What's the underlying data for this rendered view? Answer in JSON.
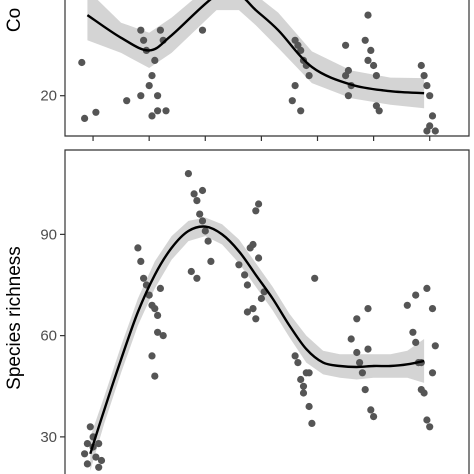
{
  "colors": {
    "point": "#555555",
    "band": "#cccccc",
    "line": "#000000",
    "panel_border": "#333333",
    "tick_text": "#4d4d4d"
  },
  "chart_data": [
    {
      "type": "scatter",
      "panel": "top",
      "ylabel": "Co",
      "ylim": [
        12,
        39
      ],
      "xlim": [
        0.5,
        7.7
      ],
      "y_ticks": [
        20
      ],
      "x_tick_positions": [
        1,
        2,
        3,
        4,
        5,
        6,
        7
      ],
      "x_tick_labels_visible": false,
      "grid": false,
      "smooth": {
        "x": [
          0.9,
          1.5,
          2.0,
          2.4,
          3.2,
          3.6,
          3.9,
          4.3,
          4.9,
          5.6,
          6.3,
          6.9
        ],
        "y": [
          36,
          31.5,
          29,
          32,
          40,
          40,
          37,
          33,
          25.7,
          22.2,
          20.9,
          20.5
        ],
        "band_low": [
          31,
          28.5,
          25.5,
          28.5,
          37,
          37,
          34,
          29.5,
          22.5,
          19.5,
          18.2,
          17.5
        ],
        "band_high": [
          41,
          34.5,
          32.5,
          35.5,
          43,
          43,
          40,
          36.5,
          28.8,
          25,
          23.6,
          23.5
        ]
      },
      "points": {
        "x": [
          0.8,
          0.85,
          1.05,
          1.6,
          1.85,
          1.9,
          1.95,
          2.0,
          2.05,
          2.1,
          2.15,
          2.2,
          1.85,
          2.05,
          2.15,
          2.25,
          2.3,
          2.95,
          4.6,
          4.65,
          4.7,
          4.75,
          4.8,
          4.85,
          4.6,
          4.55,
          4.7,
          5.5,
          5.6,
          5.55,
          5.55,
          5.5,
          5.85,
          5.95,
          5.9,
          6.0,
          6.05,
          6.05,
          6.1,
          6.85,
          6.9,
          6.95,
          7.0,
          7.05,
          7.1,
          6.95,
          7.0,
          5.9
        ],
        "y": [
          26.6,
          15.5,
          16.7,
          19,
          33,
          31,
          29,
          22,
          24,
          27,
          20,
          33,
          20,
          16,
          17,
          31,
          17,
          33,
          31,
          30,
          29,
          27,
          26,
          24,
          22,
          19,
          17,
          24,
          22,
          20,
          25,
          30,
          31,
          29,
          27,
          26,
          24,
          18,
          17,
          26,
          24,
          22,
          20,
          16,
          13,
          13,
          14,
          36
        ]
      }
    },
    {
      "type": "scatter",
      "panel": "bottom",
      "ylabel": "Species richness",
      "ylim": [
        19,
        115
      ],
      "xlim": [
        0.5,
        7.7
      ],
      "y_ticks": [
        30,
        60,
        90
      ],
      "x_tick_positions": [
        1,
        2,
        3,
        4,
        5,
        6,
        7
      ],
      "x_tick_labels_visible": false,
      "grid": false,
      "smooth": {
        "x": [
          0.95,
          1.2,
          1.5,
          1.8,
          2.1,
          2.4,
          2.7,
          3.0,
          3.3,
          3.6,
          3.9,
          4.2,
          4.5,
          4.8,
          5.1,
          5.4,
          5.7,
          6.0,
          6.3,
          6.6,
          6.9
        ],
        "y": [
          25,
          38,
          53,
          67,
          78,
          86,
          91,
          92.3,
          90,
          85,
          78,
          71,
          63,
          56,
          52,
          51,
          50.7,
          51,
          51,
          51.5,
          52.5
        ],
        "band_low": [
          20,
          34,
          49,
          63,
          74,
          82.5,
          88,
          89.5,
          87,
          81.5,
          74.5,
          67.5,
          59.5,
          52,
          48.5,
          47.5,
          47,
          47.5,
          47.5,
          47.5,
          46
        ],
        "band_high": [
          30,
          42,
          57,
          71,
          82,
          89.5,
          94,
          95,
          93,
          88.5,
          81.5,
          74.5,
          66.5,
          60,
          55.5,
          54.5,
          54.5,
          54.5,
          54.5,
          55.5,
          59
        ]
      },
      "points": {
        "x": [
          0.85,
          0.9,
          0.95,
          0.9,
          1.0,
          1.0,
          1.05,
          1.1,
          1.1,
          1.15,
          1.05,
          1.8,
          1.85,
          1.9,
          1.95,
          2.0,
          2.05,
          2.1,
          2.15,
          2.2,
          2.25,
          2.05,
          2.1,
          2.15,
          2.7,
          2.8,
          2.85,
          2.9,
          2.95,
          3.0,
          3.05,
          3.1,
          2.75,
          2.85,
          2.95,
          3.6,
          3.7,
          3.75,
          3.8,
          3.85,
          3.9,
          3.95,
          4.0,
          3.75,
          3.85,
          3.9,
          3.95,
          4.05,
          4.6,
          4.7,
          4.75,
          4.8,
          4.85,
          4.9,
          4.95,
          4.65,
          4.75,
          4.85,
          5.6,
          5.7,
          5.75,
          5.8,
          5.85,
          5.9,
          5.95,
          6.0,
          5.7,
          5.9,
          6.6,
          6.7,
          6.75,
          6.8,
          6.85,
          6.9,
          6.95,
          7.0,
          6.75,
          6.85,
          7.05,
          7.1,
          6.95,
          7.05
        ],
        "y": [
          25,
          28,
          33,
          22,
          30,
          27,
          24,
          21,
          28,
          23,
          15,
          86,
          82,
          77,
          75,
          72,
          69,
          68,
          66,
          74,
          60,
          54,
          48,
          61,
          108,
          102,
          100,
          96,
          94,
          91,
          88,
          82,
          79,
          77,
          103,
          81,
          78,
          75,
          86,
          87,
          97,
          83,
          71,
          67,
          68,
          65,
          99,
          73,
          54,
          47,
          43,
          49,
          39,
          34,
          77,
          52,
          45,
          49,
          59,
          55,
          52,
          49,
          44,
          56,
          38,
          36,
          65,
          68,
          69,
          61,
          58,
          52,
          44,
          43,
          35,
          33,
          72,
          52,
          49,
          57,
          74,
          68
        ]
      }
    }
  ]
}
